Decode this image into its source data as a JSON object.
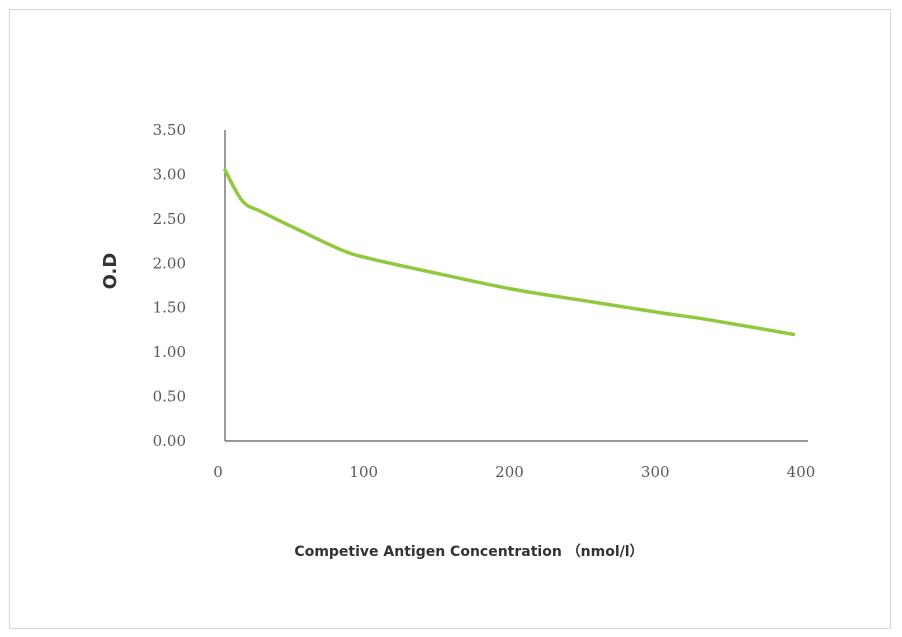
{
  "colors": {
    "series": "#92c83e",
    "axis": "#595959",
    "text": "#595959",
    "title": "#333333",
    "border": "#d9d9d9"
  },
  "chart_data": {
    "type": "line",
    "title": "",
    "xlabel": "Competive Antigen Concentration （nmol/l）",
    "ylabel": "O.D",
    "xlim": [
      0,
      400
    ],
    "ylim": [
      0,
      3.5
    ],
    "x_ticks": [
      "0",
      "100",
      "200",
      "300",
      "400"
    ],
    "y_ticks": [
      "0.00",
      "0.50",
      "1.00",
      "1.50",
      "2.00",
      "2.50",
      "3.00",
      "3.50"
    ],
    "grid": false,
    "legend": "none",
    "series": [
      {
        "x": [
          0,
          12,
          25,
          50,
          80,
          100,
          150,
          200,
          250,
          300,
          330,
          390
        ],
        "y": [
          3.05,
          2.7,
          2.58,
          2.38,
          2.15,
          2.05,
          1.87,
          1.7,
          1.57,
          1.44,
          1.37,
          1.2
        ]
      }
    ]
  }
}
